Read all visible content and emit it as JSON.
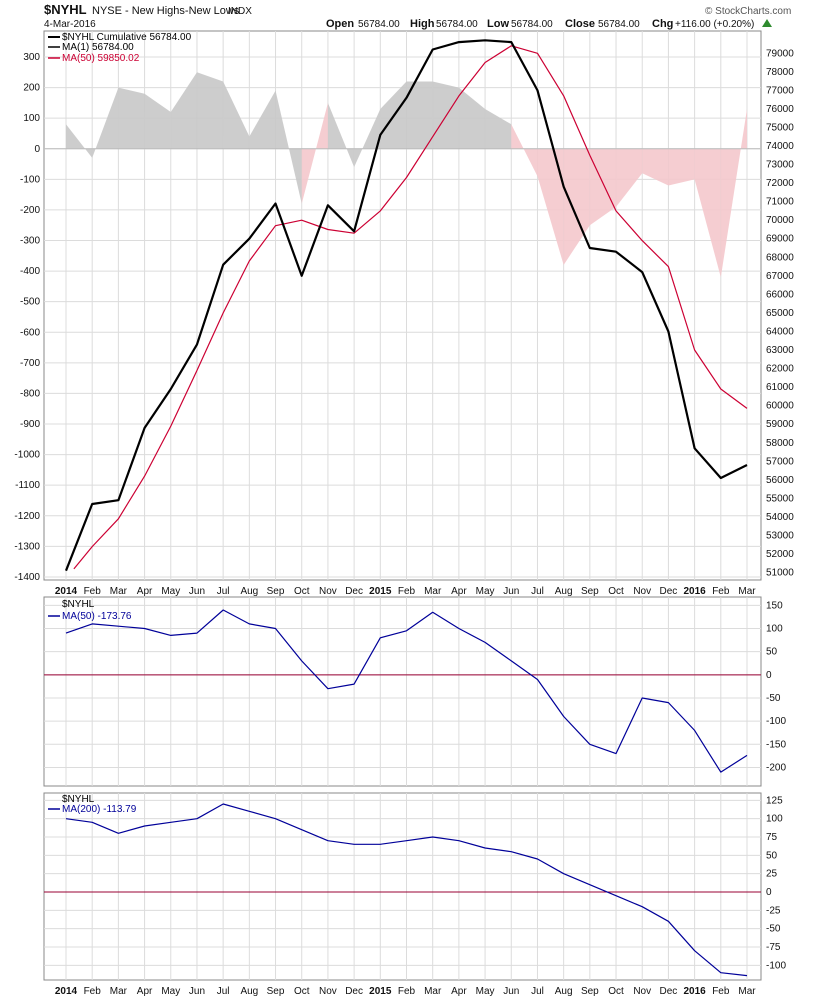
{
  "header": {
    "symbol": "$NYHL",
    "description": "NYSE - New Highs-New Lows",
    "kind": "INDX",
    "date": "4-Mar-2016",
    "open_label": "Open",
    "open": "56784.00",
    "high_label": "High",
    "high": "56784.00",
    "low_label": "Low",
    "low": "56784.00",
    "close_label": "Close",
    "close": "56784.00",
    "chg_label": "Chg",
    "chg": "+116.00 (+0.20%)",
    "watermark": "© StockCharts.com"
  },
  "colors": {
    "cumulative": "#000000",
    "ma50_red": "#cc0033",
    "histogram_pos": "#c8c8c8",
    "histogram_neg": "#f4c8cc",
    "blue": "#000099",
    "zero_line": "#990033",
    "grid": "#dcdcdc"
  },
  "x_axis": {
    "labels": [
      "2014",
      "Feb",
      "Mar",
      "Apr",
      "May",
      "Jun",
      "Jul",
      "Aug",
      "Sep",
      "Oct",
      "Nov",
      "Dec",
      "2015",
      "Feb",
      "Mar",
      "Apr",
      "May",
      "Jun",
      "Jul",
      "Aug",
      "Sep",
      "Oct",
      "Nov",
      "Dec",
      "2016",
      "Feb",
      "Mar"
    ],
    "bold_labels": [
      "2014",
      "2015",
      "2016"
    ]
  },
  "chart_data": [
    {
      "type": "line",
      "panel": "main",
      "legend": [
        {
          "name": "$NYHL Cumulative 56784.00",
          "color": "#000000"
        },
        {
          "name": "MA(1) 56784.00",
          "color": "#000000"
        },
        {
          "name": "MA(50) 59850.02",
          "color": "#cc0033"
        }
      ],
      "left_axis": {
        "ticks": [
          300,
          200,
          100,
          0,
          -100,
          -200,
          -300,
          -400,
          -500,
          -600,
          -700,
          -800,
          -900,
          -1000,
          -1100,
          -1200,
          -1300,
          -1400
        ],
        "range": [
          -1410,
          385
        ]
      },
      "right_axis": {
        "ticks": [
          79000,
          78000,
          77000,
          76000,
          75000,
          74000,
          73000,
          72000,
          71000,
          70000,
          69000,
          68000,
          67000,
          66000,
          65000,
          64000,
          63000,
          62000,
          61000,
          60000,
          59000,
          58000,
          57000,
          56000,
          55000,
          54000,
          53000,
          52000,
          51000
        ],
        "range": [
          50600,
          80200
        ]
      },
      "series": [
        {
          "name": "$NYHL Cumulative",
          "axis": "right",
          "x": [
            0,
            1,
            2,
            3,
            4,
            5,
            6,
            7,
            8,
            9,
            10,
            11,
            12,
            13,
            14,
            15,
            16,
            17,
            18,
            19,
            20,
            21,
            22,
            23,
            24,
            25,
            26
          ],
          "values": [
            51100,
            54700,
            54900,
            58800,
            60900,
            63300,
            67600,
            69000,
            70900,
            67000,
            70800,
            69400,
            74600,
            76600,
            79200,
            79600,
            79700,
            79600,
            77000,
            71800,
            68500,
            68300,
            67200,
            64000,
            57700,
            56100,
            56800
          ]
        },
        {
          "name": "MA(50)",
          "axis": "right",
          "x": [
            0.3,
            1,
            2,
            3,
            4,
            5,
            6,
            7,
            8,
            9,
            10,
            11,
            12,
            13,
            14,
            15,
            16,
            17,
            18,
            19,
            20,
            21,
            22,
            23,
            24,
            25,
            26
          ],
          "values": [
            51200,
            52400,
            53900,
            56200,
            58900,
            61900,
            65000,
            67800,
            69700,
            70000,
            69500,
            69300,
            70500,
            72300,
            74500,
            76700,
            78500,
            79400,
            79000,
            76700,
            73500,
            70500,
            68900,
            67500,
            63000,
            60900,
            59850
          ]
        },
        {
          "name": "$NYHL histogram",
          "axis": "left",
          "x": [
            0,
            1,
            2,
            3,
            4,
            5,
            6,
            7,
            8,
            9,
            10,
            11,
            12,
            13,
            14,
            15,
            16,
            17,
            18,
            19,
            20,
            21,
            22,
            23,
            24,
            25,
            26
          ],
          "values": [
            80,
            -30,
            200,
            180,
            120,
            250,
            220,
            40,
            190,
            -180,
            150,
            -60,
            130,
            220,
            220,
            200,
            130,
            80,
            -90,
            -380,
            -250,
            -190,
            -80,
            -120,
            -100,
            -420,
            130
          ]
        }
      ]
    },
    {
      "type": "line",
      "panel": "ma50",
      "title": "$NYHL",
      "legend": [
        {
          "name": "MA(50) -173.76",
          "color": "#000099"
        }
      ],
      "right_axis": {
        "ticks": [
          150,
          100,
          50,
          0,
          -50,
          -100,
          -150,
          -200
        ],
        "range": [
          -240,
          168
        ]
      },
      "series": [
        {
          "name": "MA(50)",
          "x": [
            0,
            1,
            2,
            3,
            4,
            5,
            6,
            7,
            8,
            9,
            10,
            11,
            12,
            13,
            14,
            15,
            16,
            17,
            18,
            19,
            20,
            21,
            22,
            23,
            24,
            25,
            26
          ],
          "values": [
            90,
            110,
            105,
            100,
            85,
            90,
            140,
            110,
            100,
            30,
            -30,
            -20,
            80,
            95,
            135,
            100,
            70,
            30,
            -10,
            -90,
            -150,
            -170,
            -50,
            -60,
            -120,
            -210,
            -174
          ]
        }
      ]
    },
    {
      "type": "line",
      "panel": "ma200",
      "title": "$NYHL",
      "legend": [
        {
          "name": "MA(200) -113.79",
          "color": "#000099"
        }
      ],
      "right_axis": {
        "ticks": [
          125,
          100,
          75,
          50,
          25,
          0,
          -25,
          -50,
          -75,
          -100
        ],
        "range": [
          -120,
          135
        ]
      },
      "series": [
        {
          "name": "MA(200)",
          "x": [
            0,
            1,
            2,
            3,
            4,
            5,
            6,
            7,
            8,
            9,
            10,
            11,
            12,
            13,
            14,
            15,
            16,
            17,
            18,
            19,
            20,
            21,
            22,
            23,
            24,
            25,
            26
          ],
          "values": [
            100,
            95,
            80,
            90,
            95,
            100,
            120,
            110,
            100,
            85,
            70,
            65,
            65,
            70,
            75,
            70,
            60,
            55,
            45,
            25,
            10,
            -5,
            -20,
            -40,
            -80,
            -110,
            -114
          ]
        }
      ]
    }
  ]
}
